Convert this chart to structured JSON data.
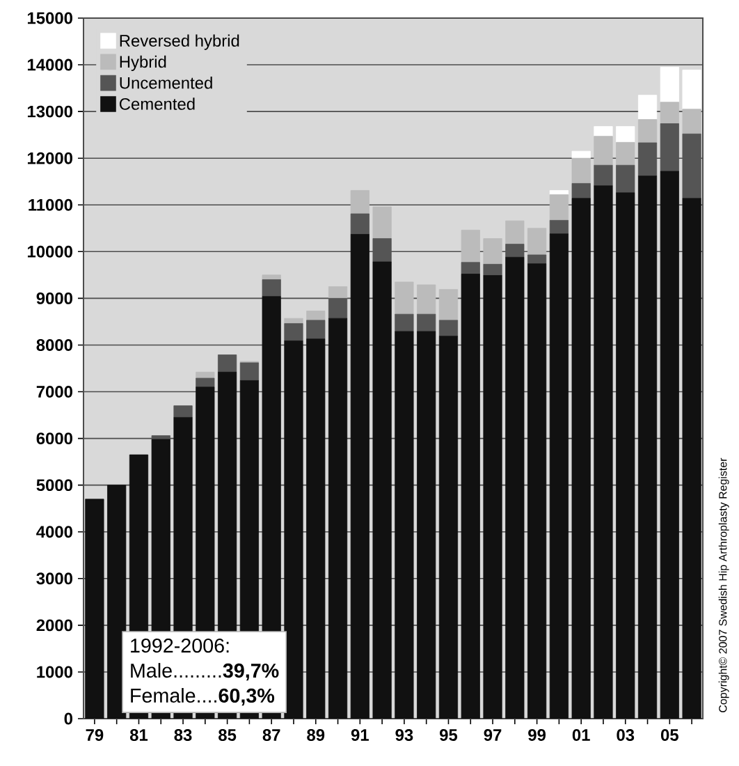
{
  "chart_data": {
    "type": "bar",
    "stacked": true,
    "categories": [
      "79",
      null,
      "81",
      null,
      "83",
      null,
      "85",
      null,
      "87",
      null,
      "89",
      null,
      "91",
      null,
      "93",
      null,
      "95",
      null,
      "97",
      null,
      "99",
      null,
      "01",
      null,
      "03",
      null,
      "05",
      null
    ],
    "series": [
      {
        "name": "Cemented",
        "color": "#111111",
        "values": [
          4700,
          5000,
          5650,
          5980,
          6450,
          7100,
          7420,
          7240,
          9040,
          8090,
          8130,
          8570,
          10370,
          9780,
          8290,
          8290,
          8190,
          9520,
          9490,
          9880,
          9740,
          10380,
          11140,
          11410,
          11260,
          11620,
          11720,
          11140
        ]
      },
      {
        "name": "Uncemented",
        "color": "#555555",
        "values": [
          0,
          0,
          0,
          80,
          250,
          190,
          370,
          380,
          360,
          370,
          400,
          430,
          440,
          500,
          370,
          370,
          340,
          250,
          240,
          280,
          190,
          290,
          320,
          440,
          590,
          710,
          1020,
          1380
        ]
      },
      {
        "name": "Hybrid",
        "color": "#bbbbbb",
        "values": [
          0,
          0,
          0,
          0,
          0,
          130,
          0,
          30,
          100,
          110,
          200,
          250,
          500,
          680,
          690,
          630,
          660,
          690,
          550,
          500,
          570,
          550,
          540,
          620,
          490,
          500,
          460,
          530
        ]
      },
      {
        "name": "Reversed hybrid",
        "color": "#ffffff",
        "values": [
          0,
          0,
          0,
          0,
          0,
          0,
          0,
          0,
          0,
          0,
          0,
          0,
          0,
          0,
          0,
          0,
          0,
          0,
          0,
          0,
          0,
          90,
          150,
          210,
          340,
          520,
          750,
          840
        ]
      }
    ],
    "ylim": [
      0,
      15000
    ],
    "yticks": [
      0,
      1000,
      2000,
      3000,
      4000,
      5000,
      6000,
      7000,
      8000,
      9000,
      10000,
      11000,
      12000,
      13000,
      14000,
      15000
    ],
    "grid": "y",
    "legend": "top left",
    "annotations": [
      "1992-2006:",
      "Male.........**39,7%**",
      "Female....**60,3%**",
      "Copyright© 2007 Swedish Hip Arthroplasty Register"
    ]
  }
}
